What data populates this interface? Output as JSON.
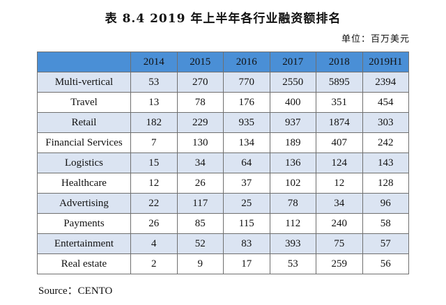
{
  "title": "表 8.4 2019 年上半年各行业融资额排名",
  "unit": "单位：百万美元",
  "table": {
    "columns": [
      "2014",
      "2015",
      "2016",
      "2017",
      "2018",
      "2019H1"
    ],
    "rows": [
      {
        "name": "Multi-vertical",
        "values": [
          "53",
          "270",
          "770",
          "2550",
          "5895",
          "2394"
        ]
      },
      {
        "name": "Travel",
        "values": [
          "13",
          "78",
          "176",
          "400",
          "351",
          "454"
        ]
      },
      {
        "name": "Retail",
        "values": [
          "182",
          "229",
          "935",
          "937",
          "1874",
          "303"
        ]
      },
      {
        "name": "Financial Services",
        "values": [
          "7",
          "130",
          "134",
          "189",
          "407",
          "242"
        ]
      },
      {
        "name": "Logistics",
        "values": [
          "15",
          "34",
          "64",
          "136",
          "124",
          "143"
        ]
      },
      {
        "name": "Healthcare",
        "values": [
          "12",
          "26",
          "37",
          "102",
          "12",
          "128"
        ]
      },
      {
        "name": "Advertising",
        "values": [
          "22",
          "117",
          "25",
          "78",
          "34",
          "96"
        ]
      },
      {
        "name": "Payments",
        "values": [
          "26",
          "85",
          "115",
          "112",
          "240",
          "58"
        ]
      },
      {
        "name": "Entertainment",
        "values": [
          "4",
          "52",
          "83",
          "393",
          "75",
          "57"
        ]
      },
      {
        "name": "Real estate",
        "values": [
          "2",
          "9",
          "17",
          "53",
          "259",
          "56"
        ]
      }
    ]
  },
  "source": "Source：CENTO",
  "colors": {
    "header_bg": "#4a8fd6",
    "shaded_row_bg": "#dbe4f2",
    "border": "#6f6f6f"
  }
}
